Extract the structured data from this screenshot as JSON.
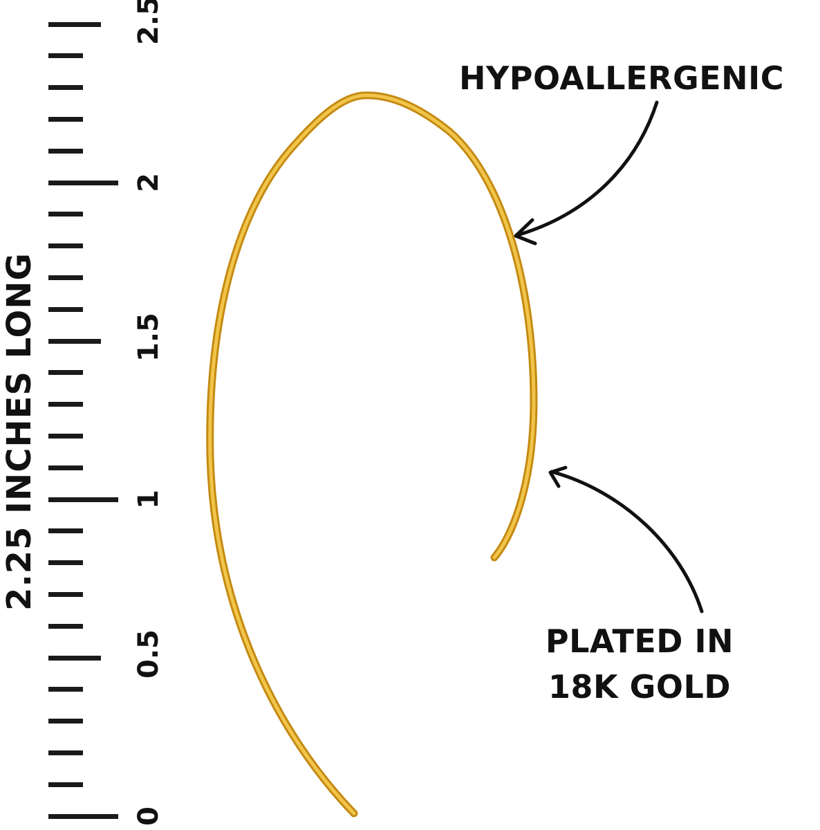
{
  "ruler": {
    "unit": "inches",
    "min": 0,
    "max": 2.5,
    "minor_step": 0.1,
    "labels": [
      "0",
      "0.5",
      "1",
      "1.5",
      "2",
      "2.5"
    ]
  },
  "length_label": "2.25 INCHES LONG",
  "callouts": {
    "top": "HYPOALLERGENIC",
    "bottom_line1": "PLATED IN",
    "bottom_line2": "18K GOLD"
  },
  "colors": {
    "gold": "#d9a520",
    "ink": "#111111"
  }
}
